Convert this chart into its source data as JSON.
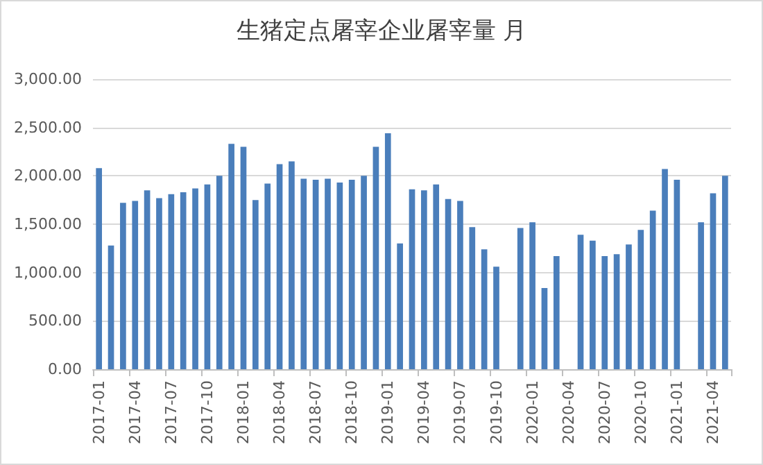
{
  "chart_data": {
    "type": "bar",
    "title": "生猪定点屠宰企业屠宰量 月",
    "categories": [
      "2017-01",
      null,
      null,
      "2017-04",
      null,
      null,
      "2017-07",
      null,
      null,
      "2017-10",
      null,
      null,
      "2018-01",
      null,
      null,
      "2018-04",
      null,
      null,
      "2018-07",
      null,
      null,
      "2018-10",
      null,
      null,
      "2019-01",
      null,
      null,
      "2019-04",
      null,
      null,
      "2019-07",
      null,
      null,
      "2019-10",
      null,
      null,
      "2020-01",
      null,
      null,
      "2020-04",
      null,
      null,
      "2020-07",
      null,
      null,
      "2020-10",
      null,
      null,
      "2021-01",
      null,
      null,
      "2021-04",
      null
    ],
    "values": [
      2080,
      1280,
      1720,
      1740,
      1850,
      1770,
      1810,
      1830,
      1870,
      1910,
      2000,
      2330,
      2300,
      1750,
      1920,
      2120,
      2150,
      1970,
      1960,
      1970,
      1930,
      1960,
      2000,
      2300,
      2440,
      1300,
      1860,
      1850,
      1910,
      1760,
      1740,
      1470,
      1240,
      1060,
      null,
      1460,
      1520,
      840,
      1170,
      null,
      1390,
      1330,
      1170,
      1190,
      1290,
      1440,
      1640,
      2070,
      1960,
      null,
      1520,
      1820,
      2000
    ],
    "color": "#4a7ebb",
    "ylim": [
      0,
      3000
    ],
    "yticks": [
      {
        "value": 0,
        "label": "0.00"
      },
      {
        "value": 500,
        "label": "500.00"
      },
      {
        "value": 1000,
        "label": "1,000.00"
      },
      {
        "value": 1500,
        "label": "1,500.00"
      },
      {
        "value": 2000,
        "label": "2,000.00"
      },
      {
        "value": 2500,
        "label": "2,500.00"
      },
      {
        "value": 3000,
        "label": "3,000.00"
      }
    ],
    "grid": "y"
  }
}
